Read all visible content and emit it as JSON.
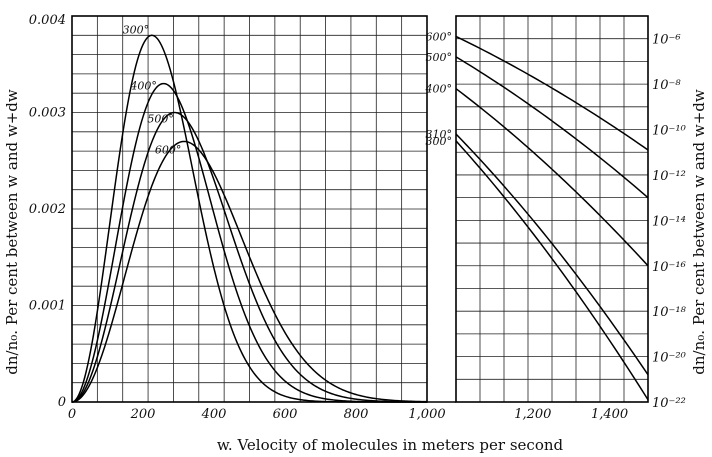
{
  "chart_data": {
    "type": "line",
    "xlabel": "w. Velocity of molecules in meters per second",
    "ylabel_left": "dn/n₀. Per cent between w and w+dw",
    "ylabel_right": "dn/n₀. Per cent between w and w+dw",
    "x_ticks": [
      "0",
      "200",
      "400",
      "600",
      "800",
      "1,000",
      "1,200",
      "1,400"
    ],
    "y_left_ticks": [
      "0",
      "0.001",
      "0.002",
      "0.003",
      "0.004"
    ],
    "y_right_ticks": [
      "10⁻⁶",
      "10⁻⁸",
      "10⁻¹⁰",
      "10⁻¹²",
      "10⁻¹⁴",
      "10⁻¹⁶",
      "10⁻¹⁸",
      "10⁻²⁰",
      "10⁻²²"
    ],
    "left_panel": {
      "xlim": [
        0,
        1000
      ],
      "ylim": [
        0,
        0.004
      ],
      "scale": "linear",
      "series": [
        {
          "name": "300°",
          "peak": {
            "x": 225,
            "y": 0.0038
          }
        },
        {
          "name": "400°",
          "peak": {
            "x": 258,
            "y": 0.0033
          }
        },
        {
          "name": "500°",
          "peak": {
            "x": 289,
            "y": 0.003
          }
        },
        {
          "name": "600°",
          "peak": {
            "x": 316,
            "y": 0.0027
          }
        }
      ]
    },
    "right_panel": {
      "xlim": [
        1000,
        1500
      ],
      "ylog_range": [
        -22,
        -5
      ],
      "scale": "log",
      "series": [
        {
          "name": "600°",
          "start_log": -5.9,
          "end_log": -10.9
        },
        {
          "name": "500°",
          "start_log": -6.8,
          "end_log": -13.0
        },
        {
          "name": "400°",
          "start_log": -8.2,
          "end_log": -16.0
        },
        {
          "name": "310°",
          "start_log": -10.2,
          "end_log": -20.8
        },
        {
          "name": "300°",
          "start_log": -10.5,
          "end_log": -21.9
        }
      ]
    }
  }
}
